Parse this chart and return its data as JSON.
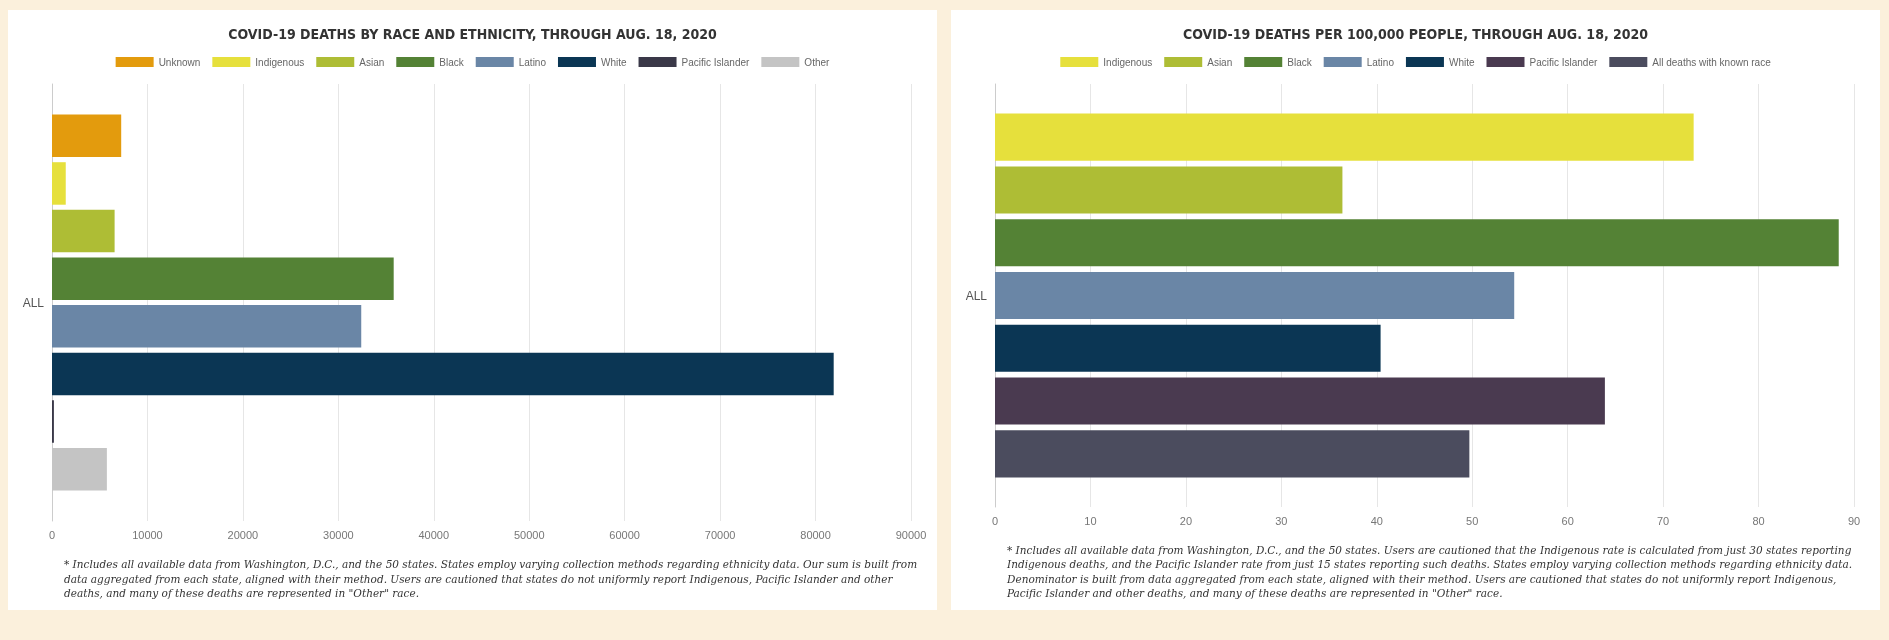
{
  "chart_data": [
    {
      "type": "bar",
      "orientation": "horizontal",
      "title": "COVID-19 DEATHS BY RACE AND ETHNICITY, THROUGH AUG. 18, 2020",
      "categories": [
        "ALL"
      ],
      "series": [
        {
          "name": "Unknown",
          "color": "#e39b0d",
          "values": [
            7250
          ]
        },
        {
          "name": "Indigenous",
          "color": "#e6e03c",
          "values": [
            1440
          ]
        },
        {
          "name": "Asian",
          "color": "#aebd35",
          "values": [
            6560
          ]
        },
        {
          "name": "Black",
          "color": "#548235",
          "values": [
            35800
          ]
        },
        {
          "name": "Latino",
          "color": "#6a86a6",
          "values": [
            32400
          ]
        },
        {
          "name": "White",
          "color": "#0b3654",
          "values": [
            81900
          ]
        },
        {
          "name": "Pacific Islander",
          "color": "#3a3848",
          "values": [
            200
          ]
        },
        {
          "name": "Other",
          "color": "#c4c4c4",
          "values": [
            5750
          ]
        }
      ],
      "xlim": [
        0,
        90000
      ],
      "xticks": [
        0,
        10000,
        20000,
        30000,
        40000,
        50000,
        60000,
        70000,
        80000,
        90000
      ],
      "grid": "x",
      "legend": "top",
      "annotations": [
        "* Includes all available data from Washington, D.C., and the 50 states. States employ varying collection methods regarding ethnicity data. Our sum is built from data aggregated from each state, aligned with their method. Users are cautioned that states do not uniformly report Indigenous, Pacific Islander and other deaths, and many of these deaths are represented in \"Other\" race."
      ]
    },
    {
      "type": "bar",
      "orientation": "horizontal",
      "title": "COVID-19 DEATHS PER 100,000 PEOPLE, THROUGH AUG. 18, 2020",
      "categories": [
        "ALL"
      ],
      "series": [
        {
          "name": "Indigenous",
          "color": "#e6e03c",
          "values": [
            73.2
          ]
        },
        {
          "name": "Asian",
          "color": "#aebd35",
          "values": [
            36.4
          ]
        },
        {
          "name": "Black",
          "color": "#548235",
          "values": [
            88.4
          ]
        },
        {
          "name": "Latino",
          "color": "#6a86a6",
          "values": [
            54.4
          ]
        },
        {
          "name": "White",
          "color": "#0b3654",
          "values": [
            40.4
          ]
        },
        {
          "name": "Pacific Islander",
          "color": "#4a3a50",
          "values": [
            63.9
          ]
        },
        {
          "name": "All deaths with known race",
          "color": "#4b4c5e",
          "values": [
            49.7
          ]
        }
      ],
      "xlim": [
        0,
        90
      ],
      "xticks": [
        0,
        10,
        20,
        30,
        40,
        50,
        60,
        70,
        80,
        90
      ],
      "grid": "x",
      "legend": "top",
      "annotations": [
        "* Includes all available data from Washington, D.C., and the 50 states. Users are cautioned that the Indigenous rate is calculated from just 30 states reporting Indigenous deaths, and the Pacific Islander rate from just 15 states reporting such deaths. States employ varying collection methods regarding ethnicity data. Denominator is built from data aggregated from each state, aligned with their method. Users are cautioned that states do not uniformly report Indigenous, Pacific Islander and other deaths, and many of these deaths are represented in \"Other\" race."
      ]
    }
  ]
}
